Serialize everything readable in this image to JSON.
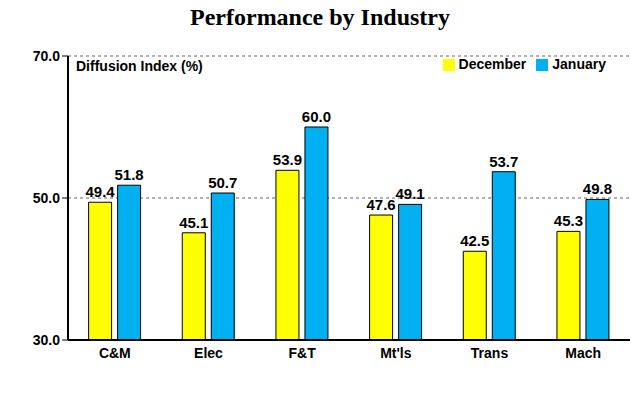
{
  "chart_data": {
    "type": "bar",
    "title": "Performance by Industry",
    "y_label": "Diffusion Index (%)",
    "categories": [
      "C&M",
      "Elec",
      "F&T",
      "Mt'ls",
      "Trans",
      "Mach"
    ],
    "series": [
      {
        "name": "December",
        "color": "#ffff00",
        "values": [
          49.4,
          45.1,
          53.9,
          47.6,
          42.5,
          45.3
        ]
      },
      {
        "name": "January",
        "color": "#00b0f0",
        "values": [
          51.8,
          50.7,
          60.0,
          49.1,
          53.7,
          49.8
        ],
        "value_labels": [
          "51.8",
          "50.7",
          "60.0",
          "49.1",
          "53.7",
          "49.8"
        ]
      }
    ],
    "ylim": [
      30,
      70
    ],
    "yticks": [
      {
        "value": 30,
        "label": "30.0"
      },
      {
        "value": 50,
        "label": "50.0"
      },
      {
        "value": 70,
        "label": "70.0"
      }
    ],
    "grid": true,
    "legend": "upper right",
    "data_labels": true
  }
}
